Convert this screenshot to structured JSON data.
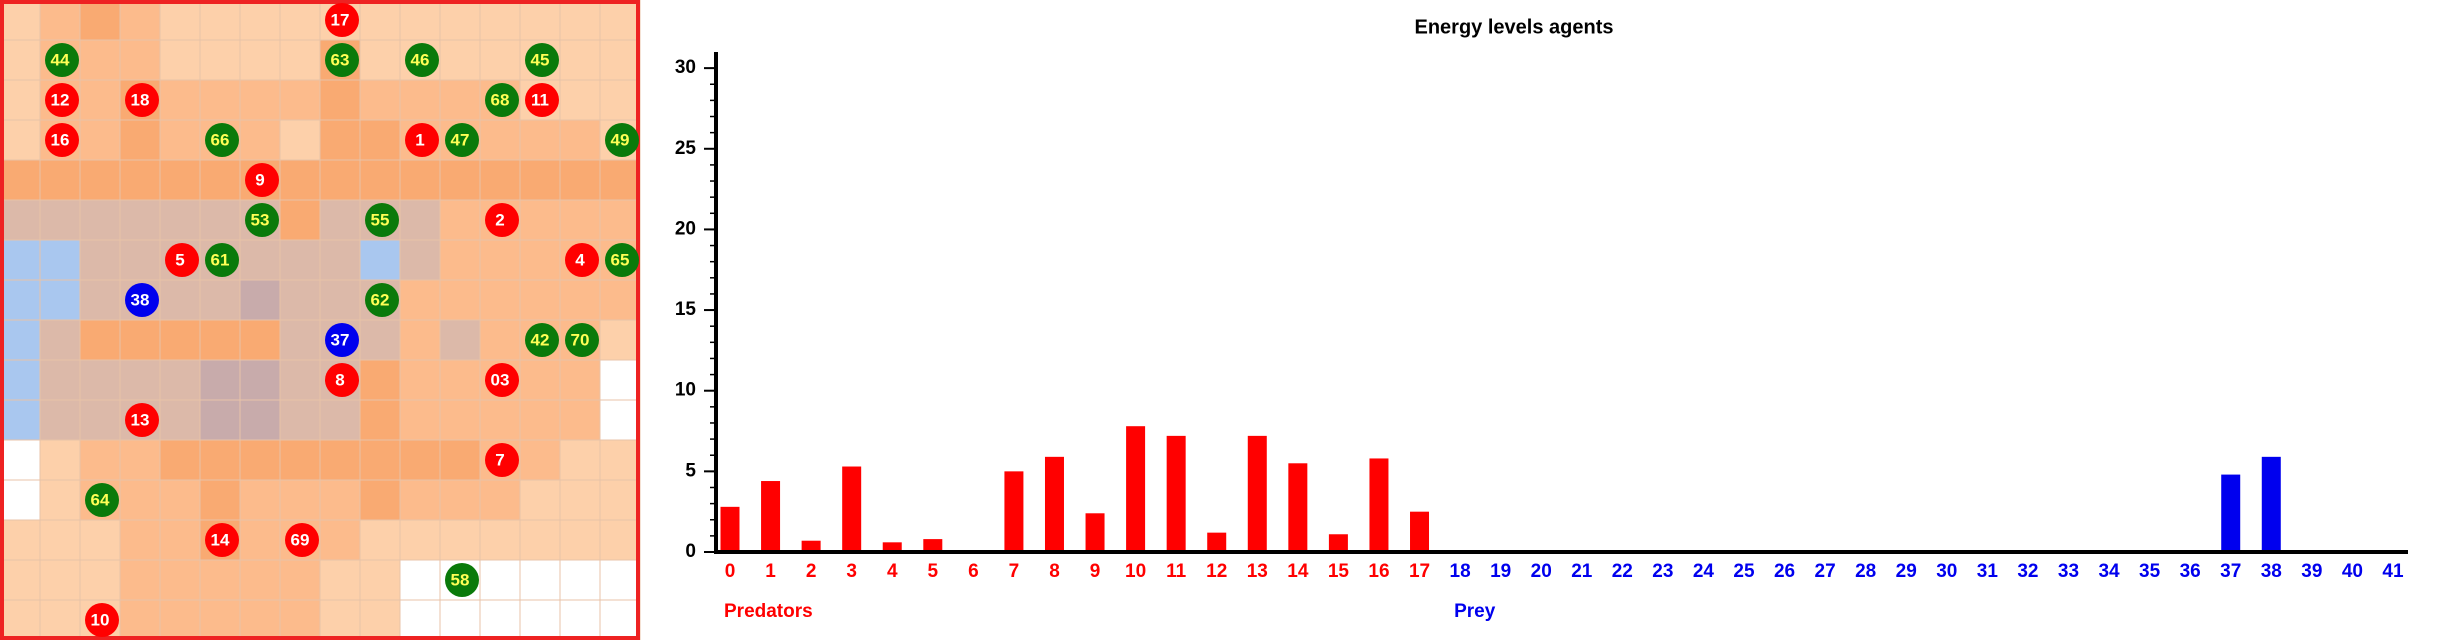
{
  "world": {
    "agents": [
      {
        "label": "17",
        "color": "#ff0000"
      },
      {
        "label": "44",
        "color": "#0a7a0a"
      },
      {
        "label": "63",
        "color": "#0a7a0a"
      },
      {
        "label": "46",
        "color": "#0a7a0a"
      },
      {
        "label": "45",
        "color": "#0a7a0a"
      },
      {
        "label": "12",
        "color": "#ff0000"
      },
      {
        "label": "18",
        "color": "#ff0000"
      },
      {
        "label": "68",
        "color": "#0a7a0a"
      },
      {
        "label": "11",
        "color": "#ff0000"
      },
      {
        "label": "16",
        "color": "#ff0000"
      },
      {
        "label": "66",
        "color": "#0a7a0a"
      },
      {
        "label": "1",
        "color": "#ff0000"
      },
      {
        "label": "47",
        "color": "#0a7a0a"
      },
      {
        "label": "49",
        "color": "#0a7a0a"
      },
      {
        "label": "9",
        "color": "#ff0000"
      },
      {
        "label": "53",
        "color": "#0a7a0a"
      },
      {
        "label": "55",
        "color": "#0a7a0a"
      },
      {
        "label": "2",
        "color": "#ff0000"
      },
      {
        "label": "5",
        "color": "#ff0000"
      },
      {
        "label": "61",
        "color": "#0a7a0a"
      },
      {
        "label": "4",
        "color": "#ff0000"
      },
      {
        "label": "65",
        "color": "#0a7a0a"
      },
      {
        "label": "38",
        "color": "#0000ee"
      },
      {
        "label": "62",
        "color": "#0a7a0a"
      },
      {
        "label": "37",
        "color": "#0000ee"
      },
      {
        "label": "42",
        "color": "#0a7a0a"
      },
      {
        "label": "70",
        "color": "#0a7a0a"
      },
      {
        "label": "8",
        "color": "#ff0000"
      },
      {
        "label": "03",
        "color": "#ff0000"
      },
      {
        "label": "13",
        "color": "#ff0000"
      },
      {
        "label": "7",
        "color": "#ff0000"
      },
      {
        "label": "64",
        "color": "#0a7a0a"
      },
      {
        "label": "14",
        "color": "#ff0000"
      },
      {
        "label": "69",
        "color": "#ff0000"
      },
      {
        "label": "58",
        "color": "#0a7a0a"
      },
      {
        "label": "10",
        "color": "#ff0000"
      }
    ]
  },
  "chart_data": {
    "type": "bar",
    "title": "Energy levels agents",
    "ylim": [
      0,
      31
    ],
    "yticks": [
      0,
      5,
      10,
      15,
      20,
      25,
      30
    ],
    "yminorticks": [
      0,
      1,
      2,
      3,
      4,
      5,
      6,
      7,
      8,
      9,
      10,
      11,
      12,
      13,
      14,
      15,
      16,
      17,
      18,
      19,
      20,
      21,
      22,
      23,
      24,
      25,
      26,
      27,
      28,
      29,
      30
    ],
    "series": [
      {
        "name": "Predators",
        "color": "#ff0000",
        "categories": [
          "0",
          "1",
          "2",
          "3",
          "4",
          "5",
          "6",
          "7",
          "8",
          "9",
          "10",
          "11",
          "12",
          "13",
          "14",
          "15",
          "16",
          "17"
        ],
        "values": [
          2.8,
          4.4,
          0.7,
          5.3,
          0.6,
          0.8,
          0,
          5.0,
          5.9,
          2.4,
          7.8,
          7.2,
          1.2,
          7.2,
          5.5,
          1.1,
          5.8,
          2.5
        ]
      },
      {
        "name": "Prey",
        "color": "#0000ee",
        "categories": [
          "18",
          "19",
          "20",
          "21",
          "22",
          "23",
          "24",
          "25",
          "26",
          "27",
          "28",
          "29",
          "30",
          "31",
          "32",
          "33",
          "34",
          "35",
          "36",
          "37",
          "38",
          "39",
          "40",
          "41"
        ],
        "values": [
          0,
          0,
          0,
          0,
          0,
          0,
          0,
          0,
          0,
          0,
          0,
          0,
          0,
          0,
          0,
          0,
          0,
          0,
          0,
          4.8,
          5.9,
          0,
          0,
          0
        ]
      }
    ]
  }
}
